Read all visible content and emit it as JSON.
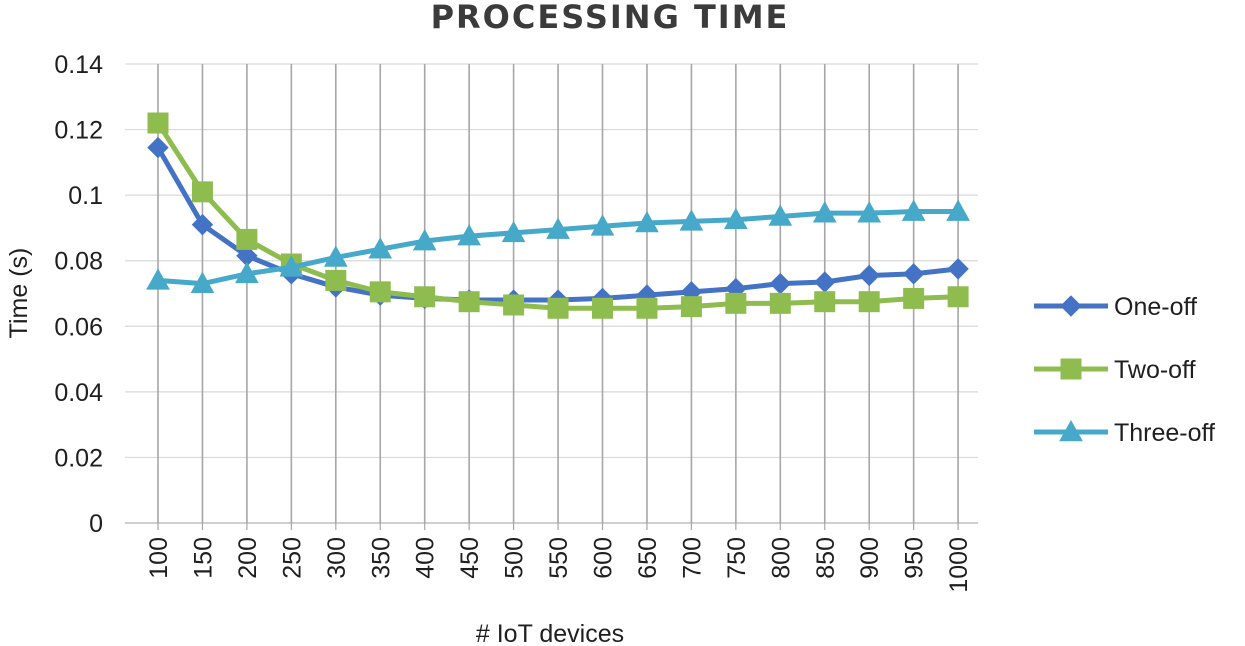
{
  "chart_data": {
    "type": "line",
    "title": "PROCESSING TIME",
    "xlabel": "# IoT devices",
    "ylabel": "Time (s)",
    "ylim": [
      0,
      0.14
    ],
    "ytick_labels": [
      "0",
      "0.02",
      "0.04",
      "0.06",
      "0.08",
      "0.1",
      "0.12",
      "0.14"
    ],
    "grid": "horizontal and vertical",
    "legend_position": "right",
    "categories": [
      "100",
      "150",
      "200",
      "250",
      "300",
      "350",
      "400",
      "450",
      "500",
      "550",
      "600",
      "650",
      "700",
      "750",
      "800",
      "850",
      "900",
      "950",
      "1000"
    ],
    "series": [
      {
        "name": "One-off",
        "color": "#4472c4",
        "marker": "diamond",
        "values": [
          0.1145,
          0.091,
          0.0815,
          0.076,
          0.072,
          0.0695,
          0.0685,
          0.068,
          0.068,
          0.068,
          0.0685,
          0.0695,
          0.0705,
          0.0715,
          0.073,
          0.0735,
          0.0755,
          0.076,
          0.0775
        ]
      },
      {
        "name": "Two-off",
        "color": "#8fbc4f",
        "marker": "square",
        "values": [
          0.122,
          0.101,
          0.0865,
          0.079,
          0.074,
          0.0705,
          0.069,
          0.0675,
          0.0665,
          0.0655,
          0.0655,
          0.0655,
          0.066,
          0.067,
          0.067,
          0.0675,
          0.0675,
          0.0685,
          0.069
        ]
      },
      {
        "name": "Three-off",
        "color": "#47a9c9",
        "marker": "triangle",
        "values": [
          0.074,
          0.073,
          0.076,
          0.078,
          0.081,
          0.0835,
          0.086,
          0.0875,
          0.0885,
          0.0895,
          0.0905,
          0.0915,
          0.092,
          0.0925,
          0.0935,
          0.0945,
          0.0945,
          0.095,
          0.095
        ]
      }
    ]
  }
}
